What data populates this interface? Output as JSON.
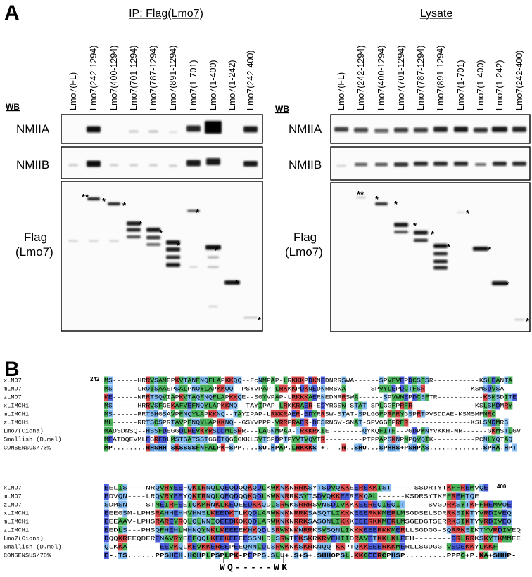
{
  "panel_a": {
    "label": "A",
    "wb": "WB",
    "rows": [
      "NMIIA",
      "NMIIB"
    ],
    "flag_label": [
      "Flag",
      "(Lmo7)"
    ],
    "ip": {
      "title": "IP: Flag(Lmo7)",
      "lanes": [
        "Lmo7(FL)",
        "Lmo7(242-1294)",
        "Lmo7(400-1294)",
        "Lmo7(701-1294)",
        "Lmo7(787-1294)",
        "Lmo7(891-1294)",
        "Lmo7(1-701)",
        "Lmo7(1-400)",
        "Lmo7(1-242)",
        "Lmo7(242-400)"
      ],
      "markers": [
        "**",
        "*",
        "*",
        "*",
        "*",
        "*",
        "*",
        "*",
        "*",
        "*"
      ]
    },
    "lysate": {
      "title": "Lysate",
      "lanes": [
        "Lmo7(FL)",
        "Lmo7(242-1294)",
        "Lmo7(400-1294)",
        "Lmo7(701-1294)",
        "Lmo7(787-1294)",
        "Lmo7(891-1294)",
        "Lmo7(1-701)",
        "Lmo7(1-400)",
        "Lmo7(1-242)",
        "Lmo7(242-400)"
      ],
      "markers": [
        "**",
        "*",
        "*",
        "*",
        "*",
        "*",
        "*",
        "*",
        "*",
        "*"
      ]
    }
  },
  "panel_b": {
    "label": "B",
    "start": "242",
    "end": "400",
    "motif": "WQ-----WK",
    "blocks": [
      {
        "rows": [
          {
            "name": "xLMO7",
            "seq": "MS------HRRVSAMEPKVTANFNQFLAPKKQQ--FcNMPAP-LRKKKPDKNEDNRRSWA------SPVFVEPDCSFSR-----------KSLEANTA"
          },
          {
            "name": "mLMO7",
            "seq": "MS------LRQISAAEPSALPNQYLAPKKQQ--PSYVPAP-LRKKKPDKNEDNRRSWA------SPVYLEPDCTFSR-----------KSMSDVSA"
          },
          {
            "name": "zLMO7",
            "seq": "KE------NRRTSQVIAPKVTAQFNQFLAPKKQE--SGYVPAP-LRKKKAERNEDNRRSWA------SPVWMEPDCSFTR-----------KSMSDITE"
          },
          {
            "name": "xLIMCH1",
            "seq": "MS------HRRVSFGEKAFVEFNQYLAPKKNQ--TAYIPAP-LRKKRAER-EDYRGSW-STAT-SPLGGFPRFR---------------KSLSMDMRY"
          },
          {
            "name": "mLIMCH1",
            "seq": "MS------RRTSHGSAVPFNQYLAPKKNQ--TAYIPAP-LRKKRAER-EDYRRSW-STAT-SPLGGFPRFRYGSPRTPVSDDAE-KSMSMFMRC"
          },
          {
            "name": "zLIMCH1",
            "seq": "ML------RRTSCSPRTAVPFNQYLAPKKNQ--GSYVPPP-VRRPRAER-DESRNSW-SNAT-SPVGGFPRFR---------------KSLSMDMRS"
          },
          {
            "name": "Lmo7(Ciona)",
            "seq": "MADSDNSQ--HSSFDEGGDLREVKYRSDDMLSRR---LAGNMPAA-TRKKRKIET-------QYKQFITF--PGDPMNYVKKH-MR------GKMSTLGV"
          },
          {
            "name": "Smallish (D.mel)",
            "seq": "MEATDQEVMLEGREDLMSTSATSSTGGDTQGCGKKLSVTSPDPTPYVTVQVTR---------PTPPAPSKNPMPQVQIK----------PCNLYQTAQ"
          },
          {
            "name": "CONSENSUS/70%",
            "seq": "MP........RHSHH-SKSSSSFNFALPK+SPP....SU.HPAP.LRKKKS-+.--.R..SHU...SPHHS+PSHPAS.............SPHA.HPT"
          }
        ]
      },
      {
        "rows": [
          {
            "name": "xLMO7",
            "seq": "EELIS----NRQVRYEEFQKIRNQLQEQDQQKQDLKWKNKNRRKSYTSDVQKKEEREKKIST-----SSDRTYTKFFREMVQE"
          },
          {
            "name": "mLMO7",
            "seq": "EDVQN----LRQVRYEEYQKIRNQLQEQDQQKQDLKWKNRRKSYTSDVQKKEEREKQAL------KSDRSYTKFFREMTQE"
          },
          {
            "name": "zLMO7",
            "seq": "SDMSN----STMEIRFEEIQKMRNKLKEQEEDKKQDLSRWKSRRRSVNSDIVKKKEEREQIEQIT-----SVGDRKSYTKFFREMVQE"
          },
          {
            "name": "xLIMCH1",
            "seq": "EEEGSM-LPHSRAHHEHHVHNSLKEEDKTLKQDLARWKNKNRRKSASQTLIKKKEEERKKMERLMSGDSELSDRRKSIKTYVRDIVEQ"
          },
          {
            "name": "mLIMCH1",
            "seq": "EEEAAV-LPHSRAREYRQLQLNNIQEEDKQKQDLARWKNKNRRKSASQNLIKKKEEERKKMERLMSGEDGTSERRKSIKTYVRDIVEQ"
          },
          {
            "name": "zLIMCH1",
            "seq": "EEDLS---PHSQFHEHLMHNQYNKLKEEEEKHKQDLSRWKNKNRRKSVSQNLIKKKEEERKKMERLLSGDGG-SQRRKSIKTYVRDIVEQ"
          },
          {
            "name": "Lmo7(Ciona)",
            "seq": "DQQKREEQDERENAVRYEEFQQLKEEKEEEESSNLDLSRWTEKSKRKRVEHIIDRAVETKKLKLEEH--------DRLRRKSKYTKMMEE"
          },
          {
            "name": "Smallish (D.mel)",
            "seq": "QLKKA-------EEVKQLKEVKKEREEPEEQNNLDLSRWKNKSKRKNQQ-KKPTQKKEEERKKMERLLSGDGG-VEDEKKYLKKF---"
          },
          {
            "name": "CONSENSUS/70%",
            "seq": "E-.TS......PPSHEH.HCHPLPSPLPK-PEPPS.SLU+.S+S+.SHHOPSL.KKCEERCPHSP.........PPPC+P.KA+SHHP-"
          }
        ]
      }
    ]
  }
}
